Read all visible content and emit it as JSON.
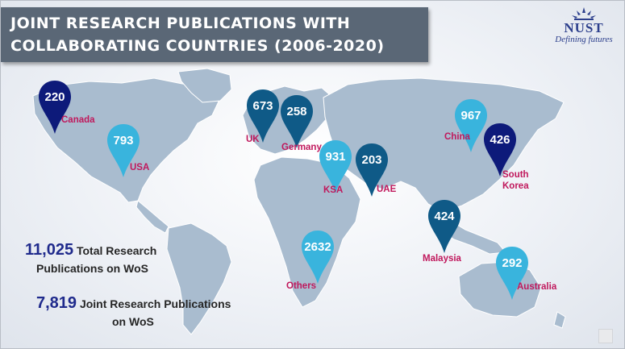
{
  "title": {
    "line1": "JOINT RESEARCH PUBLICATIONS WITH",
    "line2": "COLLABORATING COUNTRIES (2006-2020)"
  },
  "logo": {
    "name": "NUST",
    "tagline": "Defining futures"
  },
  "colors": {
    "banner": "#5a6776",
    "pin_dark": "#0f5a87",
    "pin_navy": "#0d1a7a",
    "pin_light": "#39b4dd",
    "country_label": "#c0185c",
    "map_land": "#a9bccf"
  },
  "countries": [
    {
      "name": "Canada",
      "value": "220",
      "style": "navy"
    },
    {
      "name": "USA",
      "value": "793",
      "style": "light"
    },
    {
      "name": "UK",
      "value": "673",
      "style": "dark"
    },
    {
      "name": "Germany",
      "value": "258",
      "style": "dark"
    },
    {
      "name": "KSA",
      "value": "931",
      "style": "light"
    },
    {
      "name": "UAE",
      "value": "203",
      "style": "dark"
    },
    {
      "name": "China",
      "value": "967",
      "style": "light"
    },
    {
      "name": "South Korea",
      "value": "426",
      "style": "navy"
    },
    {
      "name": "Malaysia",
      "value": "424",
      "style": "dark"
    },
    {
      "name": "Others",
      "value": "2632",
      "style": "light"
    },
    {
      "name": "Australia",
      "value": "292",
      "style": "light"
    }
  ],
  "stats": {
    "total_value": "11,025",
    "total_line1": "Total Research",
    "total_line2": "Publications on WoS",
    "joint_value": "7,819",
    "joint_line1": "Joint Research Publications",
    "joint_line2": "on WoS"
  }
}
